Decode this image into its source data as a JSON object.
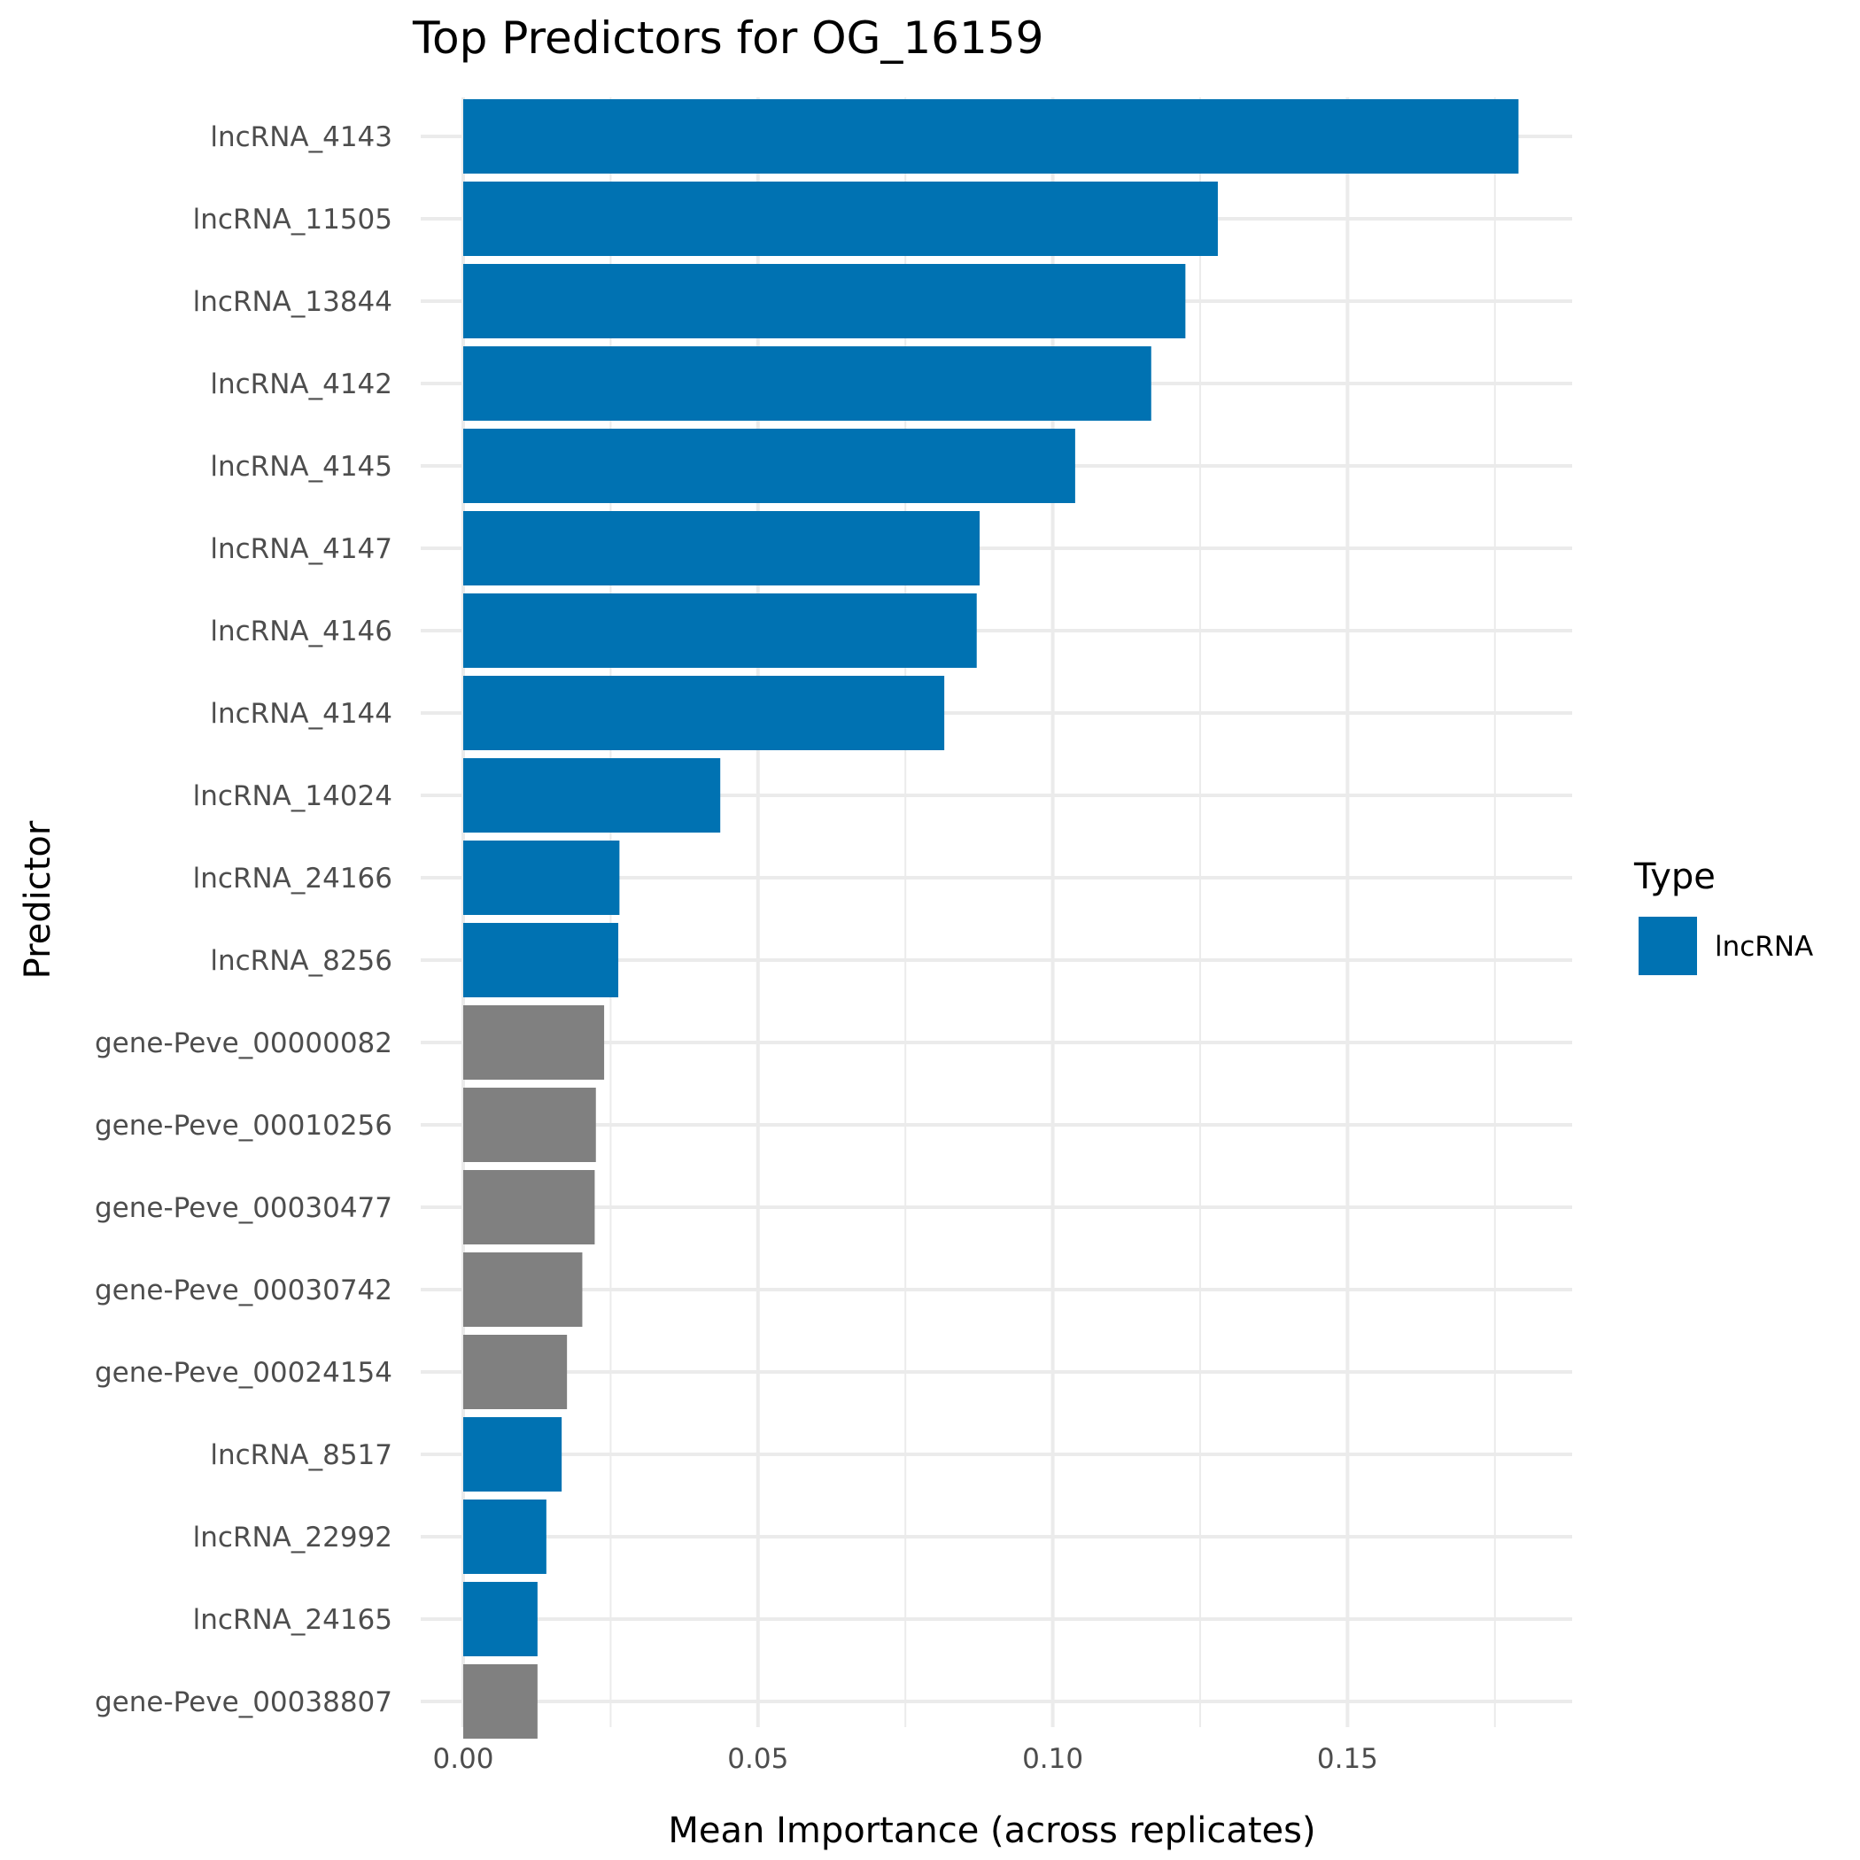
{
  "chart_data": {
    "type": "bar",
    "orientation": "horizontal",
    "title": "Top Predictors for OG_16159",
    "xlabel": "Mean Importance (across replicates)",
    "ylabel": "Predictor",
    "xlim": [
      0,
      0.188
    ],
    "xticks": [
      0,
      0.05,
      0.1,
      0.15
    ],
    "xtick_labels": [
      "0.00",
      "0.05",
      "0.10",
      "0.15"
    ],
    "grid": true,
    "legend": {
      "title": "Type",
      "placement": "right",
      "entries": [
        {
          "label": "lncRNA",
          "color": "#0072B2"
        }
      ]
    },
    "colors": {
      "lncRNA": "#0072B2",
      "gene": "#808080"
    },
    "categories": [
      "lncRNA_4143",
      "lncRNA_11505",
      "lncRNA_13844",
      "lncRNA_4142",
      "lncRNA_4145",
      "lncRNA_4147",
      "lncRNA_4146",
      "lncRNA_4144",
      "lncRNA_14024",
      "lncRNA_24166",
      "lncRNA_8256",
      "gene-Peve_00000082",
      "gene-Peve_00010256",
      "gene-Peve_00030477",
      "gene-Peve_00030742",
      "gene-Peve_00024154",
      "lncRNA_8517",
      "lncRNA_22992",
      "lncRNA_24165",
      "gene-Peve_00038807"
    ],
    "values": [
      0.179,
      0.128,
      0.1225,
      0.1167,
      0.1038,
      0.0876,
      0.0871,
      0.0816,
      0.0436,
      0.0265,
      0.0263,
      0.0239,
      0.0225,
      0.0223,
      0.0202,
      0.0176,
      0.0167,
      0.0141,
      0.0126,
      0.0126
    ],
    "types": [
      "lncRNA",
      "lncRNA",
      "lncRNA",
      "lncRNA",
      "lncRNA",
      "lncRNA",
      "lncRNA",
      "lncRNA",
      "lncRNA",
      "lncRNA",
      "lncRNA",
      "gene",
      "gene",
      "gene",
      "gene",
      "gene",
      "lncRNA",
      "lncRNA",
      "lncRNA",
      "gene"
    ]
  }
}
